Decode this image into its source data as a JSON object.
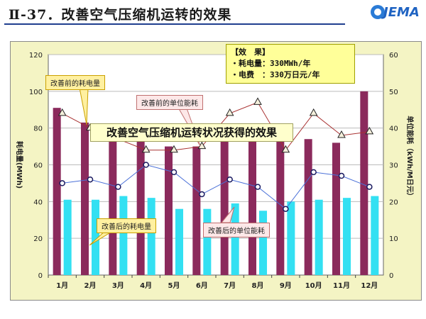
{
  "page": {
    "title": "Ⅱ-37．改善空气压缩机运转的效果",
    "logo": "JEMA"
  },
  "effect_box": {
    "heading": "【效　果】",
    "line1": "・耗电量：330MWh/年",
    "line2": "・电费　：330万日元/年"
  },
  "callouts": {
    "before_consumption": "改善前的耗电量",
    "before_unit": "改善前的单位能耗",
    "after_consumption": "改善后的耗电量",
    "after_unit": "改善后的单位能耗"
  },
  "overlay_title": "改善空气压缩机运转状况获得的效果",
  "colors": {
    "bar_before": "#8b2a5c",
    "bar_after": "#33e0f2",
    "line_before": "#a83030",
    "line_after": "#4a70d8",
    "plot_bg": "#ffffff",
    "frame_bg": "#f4f4c4"
  },
  "chart_data": {
    "type": "bar",
    "title": "",
    "categories": [
      "1月",
      "2月",
      "3月",
      "4月",
      "5月",
      "6月",
      "7月",
      "8月",
      "9月",
      "10月",
      "11月",
      "12月"
    ],
    "ylabel": "耗电量(MWh)",
    "ylabel_right": "单位能耗（kWh/M日元）",
    "ylim": [
      0,
      120
    ],
    "ylim_right": [
      0,
      60
    ],
    "yticks": [
      0,
      20,
      40,
      60,
      80,
      100,
      120
    ],
    "yticks_right": [
      0,
      10,
      20,
      30,
      40,
      50,
      60
    ],
    "grid": "horizontal",
    "series": [
      {
        "name": "改善前的耗电量",
        "kind": "bar",
        "axis": "left",
        "values": [
          91,
          83,
          77,
          75,
          70,
          70,
          75,
          73,
          75,
          74,
          72,
          100
        ]
      },
      {
        "name": "改善后的耗电量",
        "kind": "bar",
        "axis": "left",
        "values": [
          41,
          41,
          43,
          42,
          36,
          36,
          39,
          35,
          40,
          41,
          42,
          43
        ]
      },
      {
        "name": "改善前的单位能耗",
        "kind": "line",
        "axis": "right",
        "values": [
          44,
          40,
          37,
          34,
          34,
          35,
          44,
          47,
          34,
          44,
          38,
          39
        ]
      },
      {
        "name": "改善后的单位能耗",
        "kind": "line",
        "axis": "right",
        "values": [
          25,
          26,
          24,
          30,
          28,
          22,
          26,
          24,
          18,
          28,
          27,
          24
        ]
      }
    ]
  }
}
